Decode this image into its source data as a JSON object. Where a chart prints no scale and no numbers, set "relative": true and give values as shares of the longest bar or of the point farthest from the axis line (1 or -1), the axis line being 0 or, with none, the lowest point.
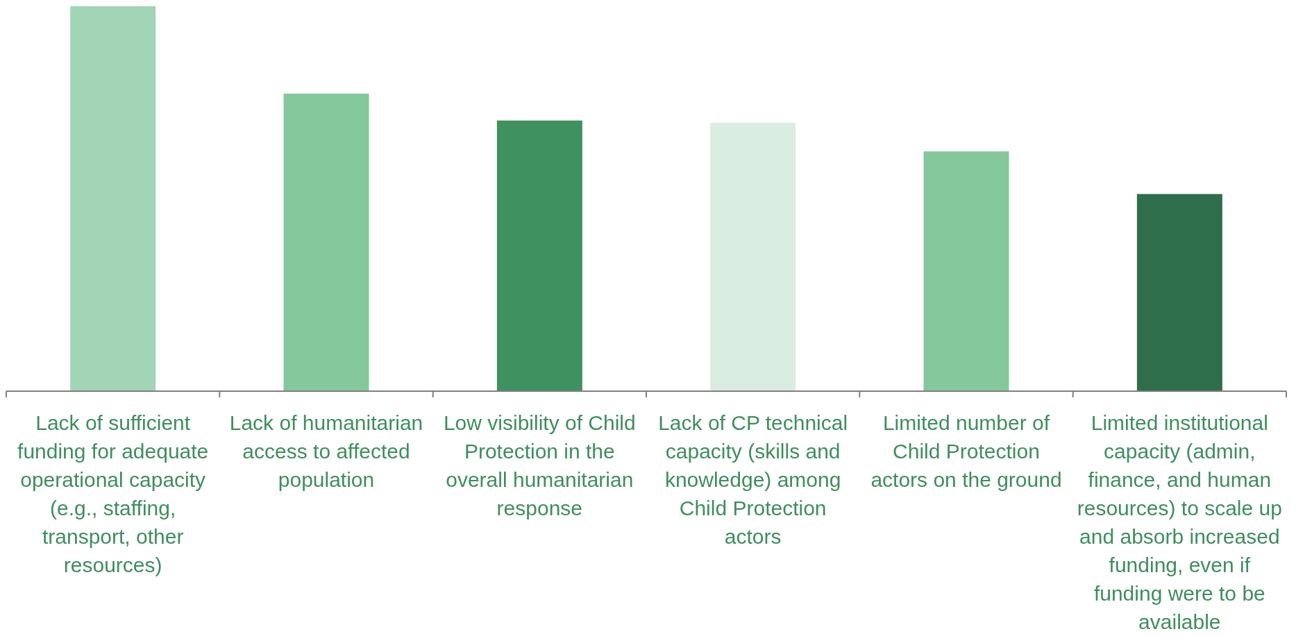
{
  "chart_data": {
    "type": "bar",
    "relative": true,
    "categories": [
      "Lack of sufficient funding for adequate operational capacity (e.g., staffing, transport, other resources)",
      "Lack of humanitarian access to affected population",
      "Low visibility of Child Protection in the overall humanitarian response",
      "Lack of CP technical capacity (skills and knowledge) among Child Protection actors",
      "Limited number of Child Protection actors on the ground",
      "Limited institutional capacity (admin, finance, and human resources) to scale up and absorb increased funding, even if funding were to be available"
    ],
    "values": [
      1,
      0.773,
      0.703,
      0.697,
      0.623,
      0.512
    ],
    "colors": [
      "#a1d5b6",
      "#84c89b",
      "#3f9160",
      "#d9ede1",
      "#84c89b",
      "#2e6e4a"
    ]
  }
}
